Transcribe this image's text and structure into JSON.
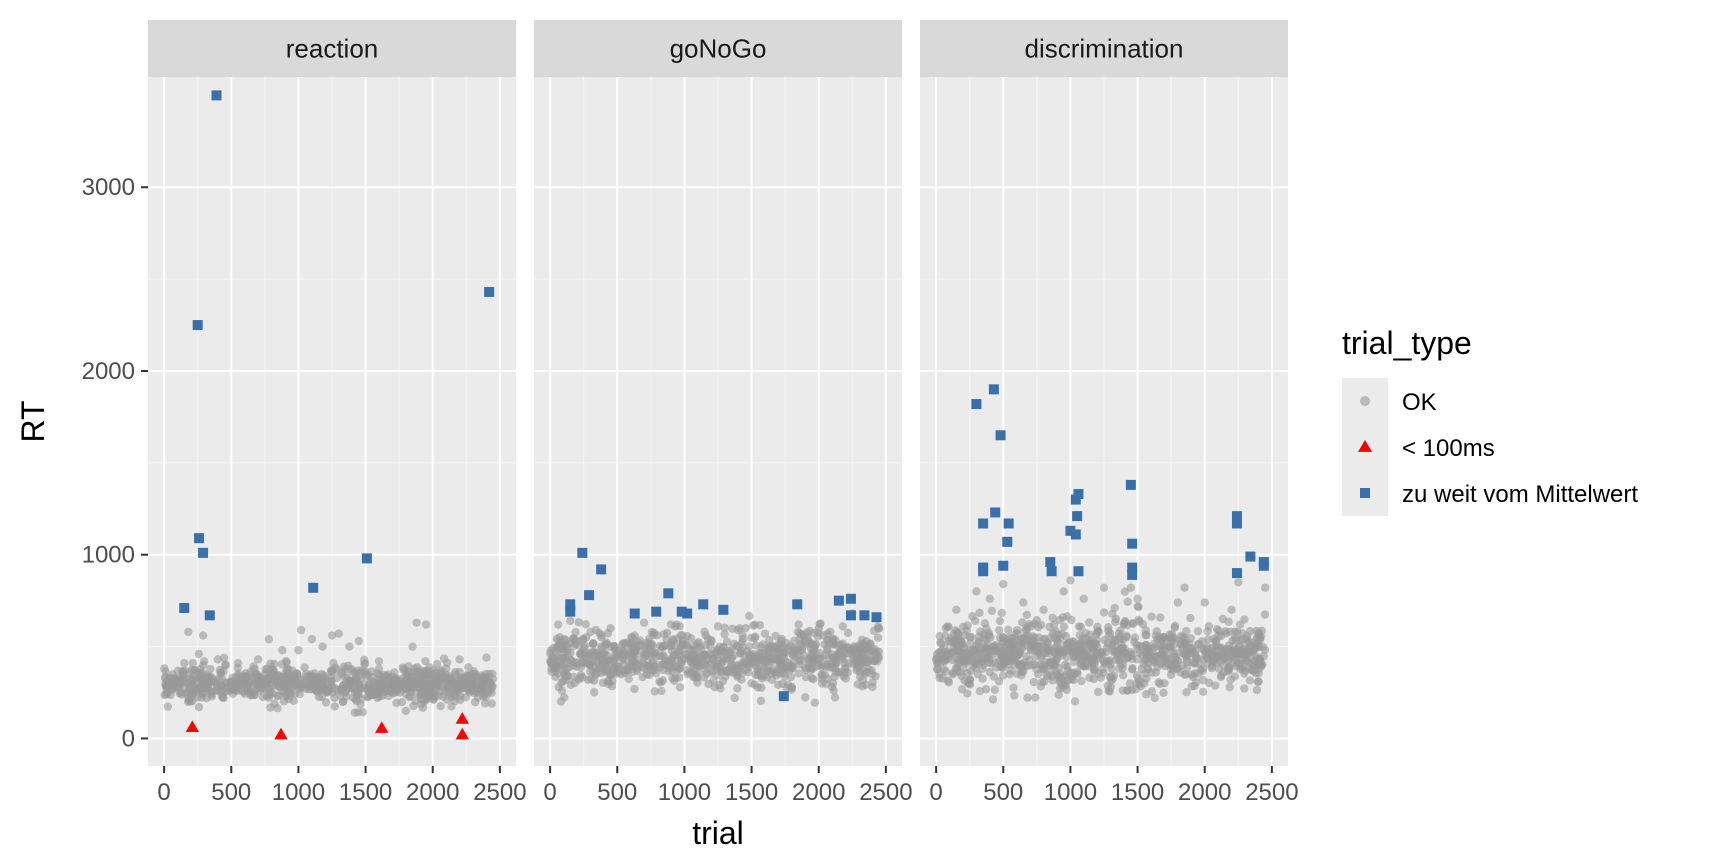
{
  "chart_data": {
    "type": "scatter",
    "xlabel": "trial",
    "ylabel": "RT",
    "xlim": [
      -120,
      2620
    ],
    "ylim": [
      -150,
      3600
    ],
    "x_ticks": [
      0,
      500,
      1000,
      1500,
      2000,
      2500
    ],
    "x_tick_labels": [
      "0",
      "500",
      "1000",
      "1500",
      "2000",
      "2500"
    ],
    "y_ticks": [
      0,
      1000,
      2000,
      3000
    ],
    "y_tick_labels": [
      "0",
      "1000",
      "2000",
      "3000"
    ],
    "grid": true,
    "legend": {
      "title": "trial_type",
      "position": "right",
      "entries": [
        {
          "label": "OK",
          "shape": "circle",
          "color": "#999999"
        },
        {
          "label": "< 100ms",
          "shape": "triangle",
          "color": "#ff0000"
        },
        {
          "label": "zu weit vom Mittelwert",
          "shape": "square",
          "color": "#3a70aa"
        }
      ]
    },
    "panels": [
      {
        "name": "reaction",
        "ok_cloud": {
          "x_range": [
            0,
            2450
          ],
          "center": 295,
          "spread": 45,
          "n": 900,
          "outliers": [
            [
              150,
              410
            ],
            [
              180,
              580
            ],
            [
              260,
              170
            ],
            [
              290,
              560
            ],
            [
              400,
              430
            ],
            [
              550,
              410
            ],
            [
              700,
              430
            ],
            [
              780,
              540
            ],
            [
              880,
              480
            ],
            [
              1000,
              480
            ],
            [
              1020,
              590
            ],
            [
              1100,
              540
            ],
            [
              1180,
              500
            ],
            [
              1250,
              560
            ],
            [
              1300,
              570
            ],
            [
              1380,
              500
            ],
            [
              1420,
              140
            ],
            [
              1450,
              530
            ],
            [
              1600,
              420
            ],
            [
              1700,
              250
            ],
            [
              1800,
              150
            ],
            [
              1850,
              500
            ],
            [
              1880,
              630
            ],
            [
              1950,
              620
            ],
            [
              2100,
              380
            ],
            [
              2200,
              430
            ],
            [
              2400,
              440
            ]
          ]
        },
        "lt100": [
          [
            210,
            60
          ],
          [
            870,
            20
          ],
          [
            1620,
            55
          ],
          [
            2220,
            105
          ],
          [
            2220,
            20
          ]
        ],
        "far": [
          [
            150,
            710
          ],
          [
            390,
            3500
          ],
          [
            250,
            2250
          ],
          [
            260,
            1090
          ],
          [
            290,
            1010
          ],
          [
            340,
            670
          ],
          [
            1110,
            820
          ],
          [
            1510,
            980
          ],
          [
            2420,
            2430
          ]
        ]
      },
      {
        "name": "goNoGo",
        "ok_cloud": {
          "x_range": [
            0,
            2450
          ],
          "center": 430,
          "spread": 75,
          "n": 900,
          "outliers": [
            [
              60,
              620
            ],
            [
              150,
              640
            ],
            [
              300,
              580
            ],
            [
              450,
              600
            ],
            [
              700,
              630
            ],
            [
              900,
              620
            ],
            [
              1150,
              580
            ],
            [
              1250,
              610
            ],
            [
              1400,
              590
            ],
            [
              1500,
              300
            ],
            [
              1600,
              570
            ],
            [
              1800,
              280
            ],
            [
              1850,
              620
            ],
            [
              2000,
              600
            ],
            [
              2250,
              680
            ],
            [
              2400,
              280
            ],
            [
              2450,
              600
            ]
          ]
        },
        "lt100": [],
        "far": [
          [
            150,
            730
          ],
          [
            150,
            690
          ],
          [
            240,
            1010
          ],
          [
            290,
            780
          ],
          [
            380,
            920
          ],
          [
            630,
            680
          ],
          [
            790,
            690
          ],
          [
            880,
            790
          ],
          [
            980,
            690
          ],
          [
            1020,
            680
          ],
          [
            1140,
            730
          ],
          [
            1290,
            700
          ],
          [
            1740,
            230
          ],
          [
            1840,
            730
          ],
          [
            2150,
            750
          ],
          [
            2240,
            760
          ],
          [
            2240,
            670
          ],
          [
            2340,
            670
          ],
          [
            2430,
            660
          ]
        ]
      },
      {
        "name": "discrimination",
        "ok_cloud": {
          "x_range": [
            0,
            2450
          ],
          "center": 460,
          "spread": 90,
          "n": 1000,
          "outliers": [
            [
              150,
              700
            ],
            [
              300,
              800
            ],
            [
              400,
              760
            ],
            [
              500,
              840
            ],
            [
              650,
              740
            ],
            [
              800,
              700
            ],
            [
              950,
              800
            ],
            [
              1000,
              860
            ],
            [
              1100,
              760
            ],
            [
              1250,
              820
            ],
            [
              1450,
              820
            ],
            [
              1500,
              760
            ],
            [
              1700,
              300
            ],
            [
              1800,
              740
            ],
            [
              1850,
              820
            ],
            [
              2000,
              740
            ],
            [
              2200,
              700
            ],
            [
              2250,
              850
            ],
            [
              2450,
              820
            ],
            [
              1550,
              300
            ],
            [
              1300,
              280
            ]
          ]
        },
        "lt100": [],
        "far": [
          [
            300,
            1820
          ],
          [
            350,
            1170
          ],
          [
            350,
            930
          ],
          [
            350,
            910
          ],
          [
            430,
            1900
          ],
          [
            440,
            1230
          ],
          [
            480,
            1650
          ],
          [
            500,
            940
          ],
          [
            530,
            1070
          ],
          [
            540,
            1170
          ],
          [
            850,
            960
          ],
          [
            860,
            910
          ],
          [
            1000,
            1130
          ],
          [
            1040,
            1110
          ],
          [
            1040,
            1300
          ],
          [
            1050,
            1210
          ],
          [
            1060,
            1330
          ],
          [
            1060,
            910
          ],
          [
            1450,
            1380
          ],
          [
            1460,
            1060
          ],
          [
            1460,
            930
          ],
          [
            1460,
            890
          ],
          [
            2240,
            1210
          ],
          [
            2240,
            1170
          ],
          [
            2240,
            900
          ],
          [
            2340,
            990
          ],
          [
            2440,
            960
          ],
          [
            2440,
            940
          ]
        ]
      }
    ]
  }
}
